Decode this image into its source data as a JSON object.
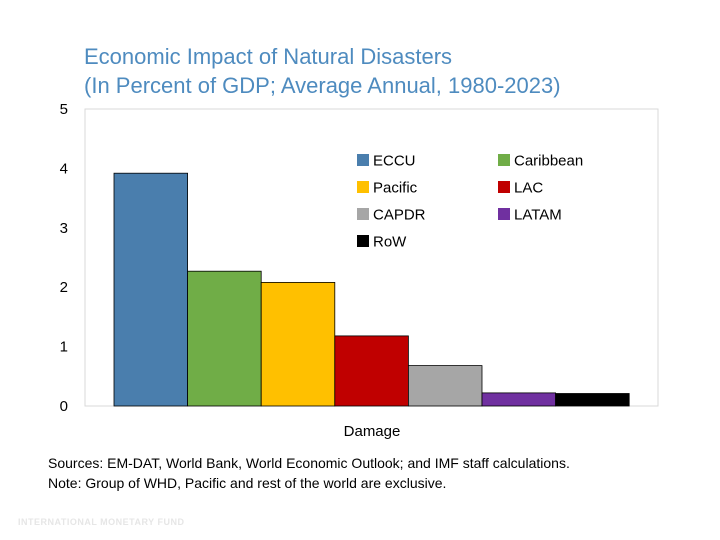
{
  "title": "Economic Impact of Natural Disasters",
  "subtitle": "(In Percent of GDP; Average Annual, 1980-2023)",
  "chart_data": {
    "type": "bar",
    "categories": [
      "Damage"
    ],
    "xlabel": "Damage",
    "ylabel": "",
    "ylim": [
      0,
      5
    ],
    "yticks": [
      0,
      1,
      2,
      3,
      4,
      5
    ],
    "grid": false,
    "legend_position": "top-right",
    "series": [
      {
        "name": "ECCU",
        "values": [
          3.92
        ],
        "color": "#4a7ead"
      },
      {
        "name": "Caribbean",
        "values": [
          2.27
        ],
        "color": "#70ad47"
      },
      {
        "name": "Pacific",
        "values": [
          2.08
        ],
        "color": "#ffc000"
      },
      {
        "name": "LAC",
        "values": [
          1.18
        ],
        "color": "#c00000"
      },
      {
        "name": "CAPDR",
        "values": [
          0.68
        ],
        "color": "#a6a6a6"
      },
      {
        "name": "LATAM",
        "values": [
          0.22
        ],
        "color": "#7030a0"
      },
      {
        "name": "RoW",
        "values": [
          0.21
        ],
        "color": "#000000"
      }
    ]
  },
  "notes": {
    "sources": "Sources: EM-DAT, World Bank, World Economic Outlook; and IMF staff calculations.",
    "note": "Note: Group of WHD, Pacific and rest of the world are exclusive."
  },
  "watermark": "INTERNATIONAL MONETARY FUND"
}
